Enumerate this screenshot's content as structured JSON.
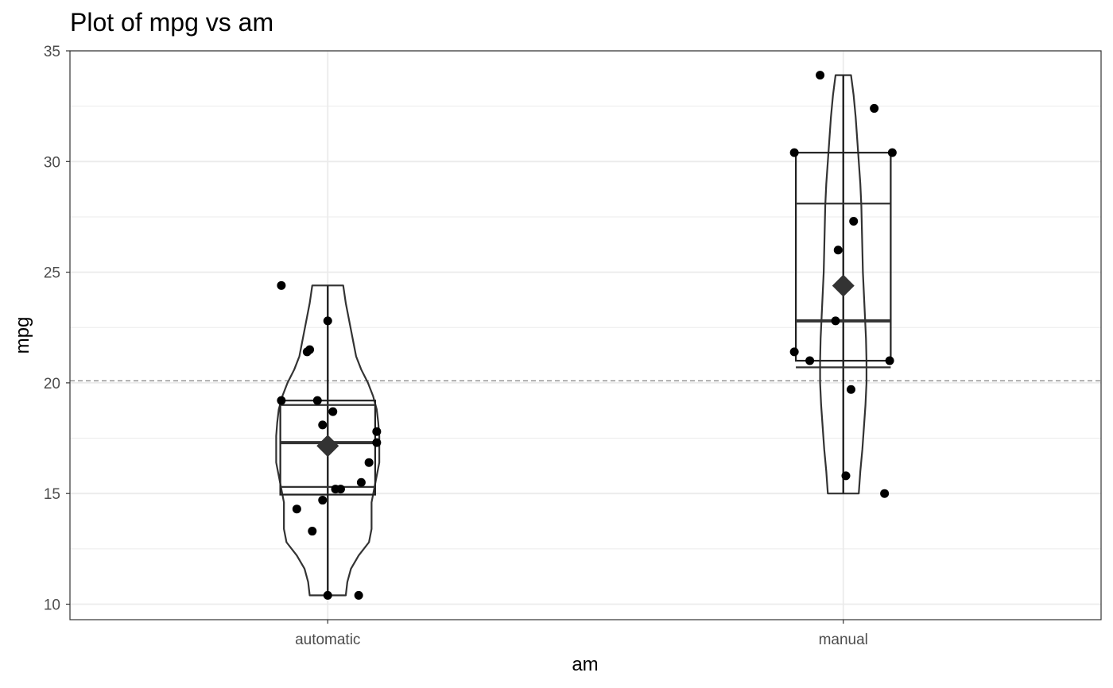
{
  "chart_data": {
    "type": "violin-box-scatter",
    "title": "Plot of mpg vs am",
    "xlabel": "am",
    "ylabel": "mpg",
    "categories": [
      "automatic",
      "manual"
    ],
    "ylim": [
      9.3,
      35
    ],
    "yticks": [
      10,
      15,
      20,
      25,
      30,
      35
    ],
    "grid": true,
    "reference_line": {
      "y": 20.09,
      "style": "dashed"
    },
    "series": [
      {
        "category": "automatic",
        "points": [
          {
            "x": -0.09,
            "y": 24.4
          },
          {
            "x": 0.0,
            "y": 22.8
          },
          {
            "x": -0.04,
            "y": 21.4
          },
          {
            "x": -0.035,
            "y": 21.5
          },
          {
            "x": -0.09,
            "y": 19.2
          },
          {
            "x": -0.02,
            "y": 19.2
          },
          {
            "x": 0.01,
            "y": 18.7
          },
          {
            "x": -0.01,
            "y": 18.1
          },
          {
            "x": 0.095,
            "y": 17.8
          },
          {
            "x": 0.095,
            "y": 17.3
          },
          {
            "x": 0.08,
            "y": 16.4
          },
          {
            "x": 0.065,
            "y": 15.5
          },
          {
            "x": 0.015,
            "y": 15.2
          },
          {
            "x": 0.025,
            "y": 15.2
          },
          {
            "x": -0.01,
            "y": 14.7
          },
          {
            "x": -0.06,
            "y": 14.3
          },
          {
            "x": -0.03,
            "y": 13.3
          },
          {
            "x": 0.0,
            "y": 10.4
          },
          {
            "x": 0.06,
            "y": 10.4
          }
        ],
        "box": {
          "q1": 14.95,
          "median": 17.3,
          "q3": 19.2,
          "min": 10.4,
          "max": 24.4
        },
        "ci_lines": [
          19.0,
          15.3
        ],
        "mean": 17.15,
        "violin_profile": [
          [
            10.4,
            0.035
          ],
          [
            11.0,
            0.038
          ],
          [
            11.6,
            0.045
          ],
          [
            12.2,
            0.06
          ],
          [
            12.8,
            0.08
          ],
          [
            13.4,
            0.085
          ],
          [
            14.0,
            0.085
          ],
          [
            14.6,
            0.085
          ],
          [
            15.2,
            0.09
          ],
          [
            15.8,
            0.095
          ],
          [
            16.4,
            0.1
          ],
          [
            17.0,
            0.1
          ],
          [
            17.6,
            0.1
          ],
          [
            18.2,
            0.098
          ],
          [
            18.8,
            0.095
          ],
          [
            19.4,
            0.088
          ],
          [
            20.0,
            0.078
          ],
          [
            20.6,
            0.065
          ],
          [
            21.2,
            0.055
          ],
          [
            21.8,
            0.05
          ],
          [
            22.4,
            0.045
          ],
          [
            23.0,
            0.04
          ],
          [
            23.6,
            0.035
          ],
          [
            24.4,
            0.03
          ]
        ]
      },
      {
        "category": "manual",
        "points": [
          {
            "x": -0.045,
            "y": 33.9
          },
          {
            "x": 0.06,
            "y": 32.4
          },
          {
            "x": -0.095,
            "y": 30.4
          },
          {
            "x": 0.095,
            "y": 30.4
          },
          {
            "x": 0.02,
            "y": 27.3
          },
          {
            "x": -0.01,
            "y": 26.0
          },
          {
            "x": -0.015,
            "y": 22.8
          },
          {
            "x": -0.095,
            "y": 21.4
          },
          {
            "x": -0.065,
            "y": 21.0
          },
          {
            "x": 0.09,
            "y": 21.0
          },
          {
            "x": 0.015,
            "y": 19.7
          },
          {
            "x": 0.005,
            "y": 15.8
          },
          {
            "x": 0.08,
            "y": 15.0
          }
        ],
        "box": {
          "q1": 21.0,
          "median": 22.8,
          "q3": 30.4,
          "min": 15.0,
          "max": 33.9
        },
        "ci_lines": [
          28.1,
          20.7
        ],
        "mean": 24.39,
        "violin_profile": [
          [
            15.0,
            0.03
          ],
          [
            16.0,
            0.033
          ],
          [
            17.0,
            0.037
          ],
          [
            18.0,
            0.04
          ],
          [
            19.0,
            0.043
          ],
          [
            20.0,
            0.045
          ],
          [
            21.0,
            0.045
          ],
          [
            22.0,
            0.044
          ],
          [
            23.0,
            0.042
          ],
          [
            24.0,
            0.04
          ],
          [
            25.0,
            0.038
          ],
          [
            26.0,
            0.037
          ],
          [
            27.0,
            0.036
          ],
          [
            28.0,
            0.035
          ],
          [
            29.0,
            0.033
          ],
          [
            30.0,
            0.03
          ],
          [
            31.0,
            0.027
          ],
          [
            32.0,
            0.024
          ],
          [
            33.0,
            0.02
          ],
          [
            33.9,
            0.015
          ]
        ]
      }
    ]
  }
}
